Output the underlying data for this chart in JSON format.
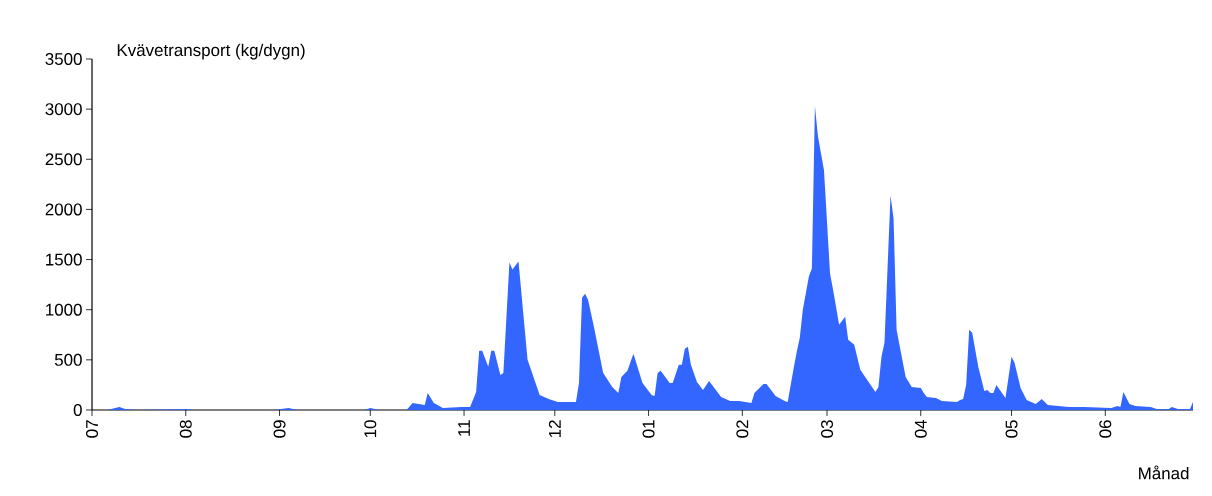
{
  "chart_data": {
    "type": "area",
    "ylabel": "Kvävetransport (kg/dygn)",
    "xlabel": "Månad",
    "color": "#3366ff",
    "x": [
      "2001-07-01",
      "2001-07-06",
      "2001-07-10",
      "2001-07-12",
      "2001-07-16",
      "2001-08-01",
      "2001-08-04",
      "2001-08-30",
      "2001-09-04",
      "2001-09-07",
      "2001-09-29",
      "2001-10-01",
      "2001-10-04",
      "2001-10-13",
      "2001-10-15",
      "2001-10-19",
      "2001-10-20",
      "2001-10-22",
      "2001-10-25",
      "2001-10-31",
      "2001-11-03",
      "2001-11-05",
      "2001-11-06",
      "2001-11-07",
      "2001-11-09",
      "2001-11-10",
      "2001-11-11",
      "2001-11-13",
      "2001-11-14",
      "2001-11-16",
      "2001-11-17",
      "2001-11-19",
      "2001-11-22",
      "2001-11-26",
      "2001-11-29",
      "2001-12-02",
      "2001-12-08",
      "2001-12-09",
      "2001-12-10",
      "2001-12-11",
      "2001-12-12",
      "2001-12-14",
      "2001-12-17",
      "2001-12-20",
      "2001-12-22",
      "2001-12-23",
      "2001-12-25",
      "2001-12-27",
      "2001-12-30",
      "2002-01-02",
      "2002-01-03",
      "2002-01-04",
      "2002-01-05",
      "2002-01-08",
      "2002-01-09",
      "2002-01-11",
      "2002-01-12",
      "2002-01-13",
      "2002-01-14",
      "2002-01-15",
      "2002-01-17",
      "2002-01-19",
      "2002-01-21",
      "2002-01-25",
      "2002-01-28",
      "2002-01-31",
      "2002-02-04",
      "2002-02-05",
      "2002-02-08",
      "2002-02-09",
      "2002-02-12",
      "2002-02-15",
      "2002-02-16",
      "2002-02-18",
      "2002-02-19",
      "2002-02-20",
      "2002-02-21",
      "2002-02-23",
      "2002-02-24",
      "2002-02-25",
      "2002-02-26",
      "2002-02-28",
      "2002-03-02",
      "2002-03-03",
      "2002-03-05",
      "2002-03-07",
      "2002-03-08",
      "2002-03-10",
      "2002-03-12",
      "2002-03-17",
      "2002-03-18",
      "2002-03-19",
      "2002-03-20",
      "2002-03-22",
      "2002-03-23",
      "2002-03-24",
      "2002-03-27",
      "2002-03-29",
      "2002-04-01",
      "2002-04-02",
      "2002-04-03",
      "2002-04-06",
      "2002-04-08",
      "2002-04-13",
      "2002-04-14",
      "2002-04-15",
      "2002-04-16",
      "2002-04-17",
      "2002-04-18",
      "2002-04-20",
      "2002-04-22",
      "2002-04-23",
      "2002-04-24",
      "2002-04-25",
      "2002-04-26",
      "2002-04-29",
      "2002-05-01",
      "2002-05-02",
      "2002-05-04",
      "2002-05-06",
      "2002-05-09",
      "2002-05-11",
      "2002-05-13",
      "2002-05-20",
      "2002-05-25",
      "2002-06-03",
      "2002-06-05",
      "2002-06-06",
      "2002-06-07",
      "2002-06-09",
      "2002-06-11",
      "2002-06-16",
      "2002-06-18",
      "2002-06-22",
      "2002-06-23",
      "2002-06-25",
      "2002-06-29",
      "2002-06-30"
    ],
    "values": [
      0,
      0,
      30,
      10,
      0,
      10,
      0,
      0,
      20,
      0,
      0,
      20,
      0,
      0,
      70,
      50,
      170,
      70,
      20,
      30,
      30,
      180,
      590,
      590,
      430,
      590,
      590,
      350,
      370,
      1470,
      1400,
      1480,
      500,
      150,
      110,
      80,
      80,
      270,
      1120,
      1160,
      1100,
      820,
      370,
      230,
      170,
      330,
      390,
      560,
      270,
      150,
      140,
      370,
      390,
      270,
      270,
      450,
      450,
      610,
      630,
      450,
      280,
      200,
      290,
      130,
      90,
      90,
      70,
      170,
      260,
      260,
      140,
      90,
      80,
      420,
      580,
      720,
      1000,
      1330,
      1410,
      3030,
      2730,
      2390,
      1360,
      1200,
      850,
      930,
      700,
      650,
      400,
      180,
      230,
      530,
      670,
      2140,
      1910,
      800,
      330,
      230,
      220,
      170,
      130,
      120,
      90,
      80,
      100,
      110,
      250,
      800,
      770,
      430,
      190,
      200,
      170,
      170,
      250,
      120,
      530,
      470,
      220,
      100,
      60,
      110,
      50,
      30,
      30,
      20,
      40,
      30,
      180,
      60,
      40,
      30,
      10,
      10,
      30,
      10,
      10,
      80
    ],
    "xlim": [
      "2001-07-01",
      "2002-06-30"
    ],
    "xticks": [
      {
        "value": "2001-07-01",
        "label": "07"
      },
      {
        "value": "2001-08-01",
        "label": "08"
      },
      {
        "value": "2001-09-01",
        "label": "09"
      },
      {
        "value": "2001-10-01",
        "label": "10"
      },
      {
        "value": "2001-11-01",
        "label": "11"
      },
      {
        "value": "2001-12-01",
        "label": "12"
      },
      {
        "value": "2002-01-01",
        "label": "01"
      },
      {
        "value": "2002-02-01",
        "label": "02"
      },
      {
        "value": "2002-03-01",
        "label": "03"
      },
      {
        "value": "2002-04-01",
        "label": "04"
      },
      {
        "value": "2002-05-01",
        "label": "05"
      },
      {
        "value": "2002-06-01",
        "label": "06"
      }
    ],
    "ylim": [
      0,
      3500
    ],
    "yticks": [
      0,
      500,
      1000,
      1500,
      2000,
      2500,
      3000,
      3500
    ]
  }
}
